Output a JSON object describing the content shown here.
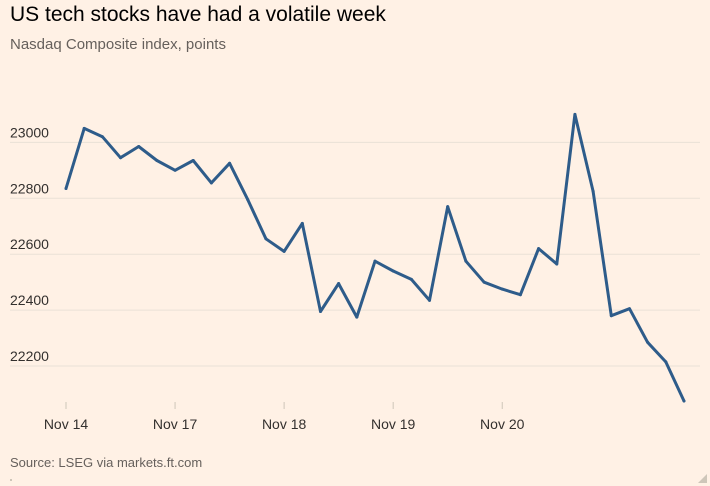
{
  "header": {
    "title": "US tech stocks have had a volatile week",
    "subtitle": "Nasdaq Composite index, points"
  },
  "footer": {
    "source": "Source: LSEG via markets.ft.com"
  },
  "colors": {
    "background": "#FFF1E5",
    "line": "#2E5C8A",
    "grid": "#EAE1D6",
    "tick_text": "#33302E",
    "muted_text": "#66605C",
    "axis": "#CEC6B9"
  },
  "chart_data": {
    "type": "line",
    "title": "US tech stocks have had a volatile week",
    "subtitle": "Nasdaq Composite index, points",
    "xlabel": "",
    "ylabel": "",
    "ylim": [
      22075,
      23180
    ],
    "yticks": [
      22200,
      22400,
      22600,
      22800,
      23000
    ],
    "grid": true,
    "legend": "none",
    "x_tick_labels": [
      {
        "label": "Nov 14",
        "index": 0
      },
      {
        "label": "Nov 17",
        "index": 6
      },
      {
        "label": "Nov 18",
        "index": 12
      },
      {
        "label": "Nov 19",
        "index": 18
      },
      {
        "label": "Nov 20",
        "index": 24
      }
    ],
    "series": [
      {
        "name": "Nasdaq Composite",
        "values": [
          22835,
          23050,
          23020,
          22945,
          22985,
          22935,
          22900,
          22935,
          22855,
          22925,
          22795,
          22655,
          22610,
          22710,
          22395,
          22495,
          22375,
          22575,
          22540,
          22510,
          22435,
          22770,
          22575,
          22500,
          22475,
          22455,
          22620,
          22565,
          23100,
          22825,
          22380,
          22405,
          22285,
          22215,
          22075
        ]
      }
    ]
  }
}
